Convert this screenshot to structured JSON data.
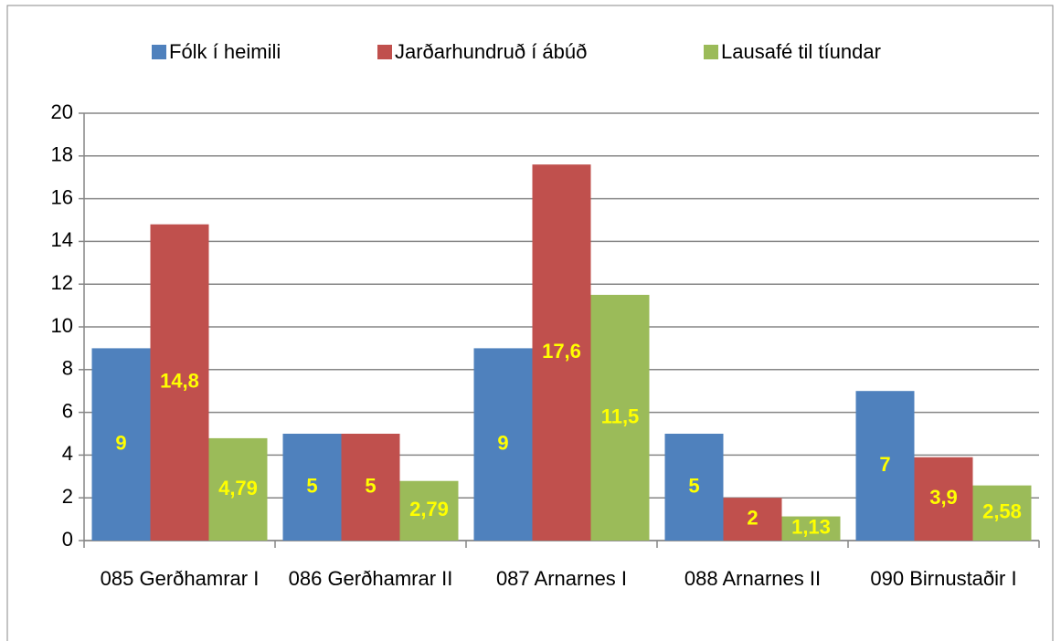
{
  "chart_data": {
    "type": "bar",
    "categories": [
      "085 Gerðhamrar I",
      "086 Gerðhamrar II",
      "087 Arnarnes I",
      "088 Arnarnes II",
      "090 Birnustaðir I"
    ],
    "series": [
      {
        "name": "Fólk í heimili",
        "color": "#4f81bd",
        "values": [
          9,
          5,
          9,
          5,
          7
        ],
        "value_labels": [
          "9",
          "5",
          "9",
          "5",
          "7"
        ]
      },
      {
        "name": "Jarðarhundruð í ábúð",
        "color": "#c0504d",
        "values": [
          14.8,
          5,
          17.6,
          2,
          3.9
        ],
        "value_labels": [
          "14,8",
          "5",
          "17,6",
          "2",
          "3,9"
        ]
      },
      {
        "name": "Lausafé til tíundar",
        "color": "#9bbb59",
        "values": [
          4.79,
          2.79,
          11.5,
          1.13,
          2.58
        ],
        "value_labels": [
          "4,79",
          "2,79",
          "11,5",
          "1,13",
          "2,58"
        ]
      }
    ],
    "ylim": [
      0,
      20
    ],
    "yticks": [
      0,
      2,
      4,
      6,
      8,
      10,
      12,
      14,
      16,
      18,
      20
    ],
    "grid": true,
    "legend": "top",
    "label_color": "#ffff00"
  }
}
